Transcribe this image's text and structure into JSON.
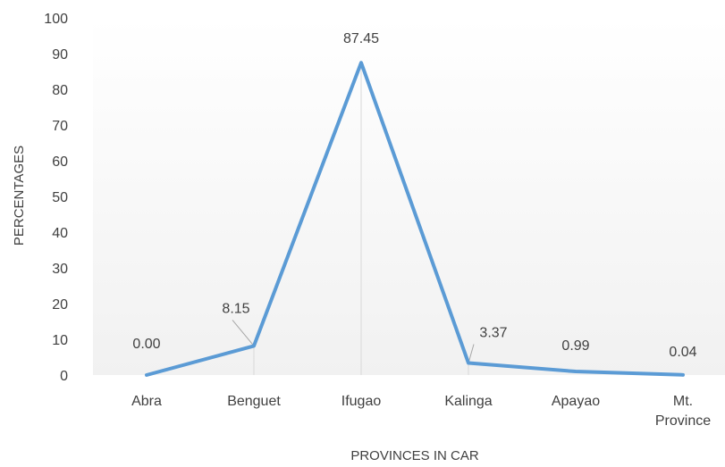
{
  "chart_data": {
    "type": "line",
    "title": "",
    "xlabel": "PROVINCES IN CAR",
    "ylabel": "PERCENTAGES",
    "categories": [
      [
        "Abra"
      ],
      [
        "Benguet"
      ],
      [
        "Ifugao"
      ],
      [
        "Kalinga"
      ],
      [
        "Apayao"
      ],
      [
        "Mt.",
        "Province"
      ]
    ],
    "series": [
      {
        "values": [
          0.0,
          8.15,
          87.45,
          3.37,
          0.99,
          0.04
        ],
        "labels": [
          "0.00",
          "8.15",
          "87.45",
          "3.37",
          "0.99",
          "0.04"
        ],
        "color": "#5b9bd5"
      }
    ],
    "ylim": [
      0,
      100
    ],
    "yticks": [
      0,
      10,
      20,
      30,
      40,
      50,
      60,
      70,
      80,
      90,
      100
    ],
    "grid": false,
    "legend": "none"
  }
}
